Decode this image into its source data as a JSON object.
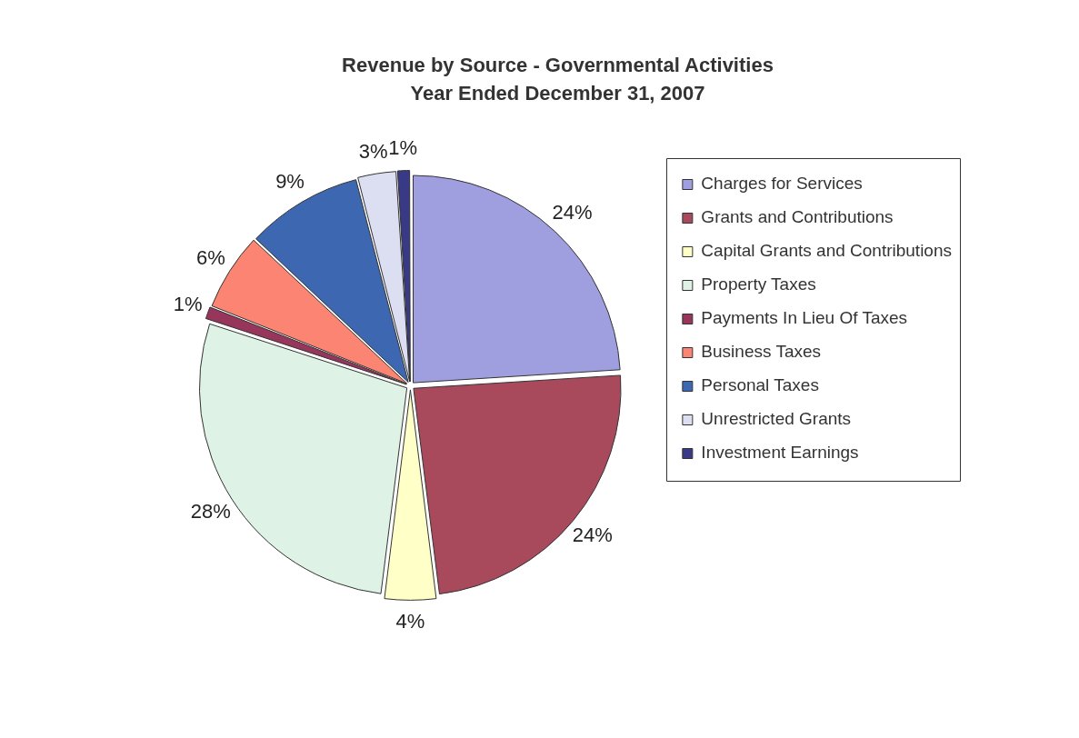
{
  "chart_data": {
    "type": "pie",
    "title": "Revenue by Source - Governmental Activities",
    "subtitle": "Year Ended December 31, 2007",
    "categories": [
      "Charges for Services",
      "Grants and Contributions",
      "Capital Grants and Contributions",
      "Property Taxes",
      "Payments In Lieu Of Taxes",
      "Business Taxes",
      "Personal Taxes",
      "Unrestricted Grants",
      "Investment Earnings"
    ],
    "values": [
      24,
      24,
      4,
      28,
      1,
      6,
      9,
      3,
      1
    ],
    "value_labels": [
      "24%",
      "24%",
      "4%",
      "28%",
      "1%",
      "6%",
      "9%",
      "3%",
      "1%"
    ],
    "colors": [
      "#9f9fdf",
      "#a84a5c",
      "#ffffc8",
      "#def2e6",
      "#98355a",
      "#fb8472",
      "#3d67b0",
      "#dcdff2",
      "#383a86"
    ],
    "legend": "right"
  }
}
